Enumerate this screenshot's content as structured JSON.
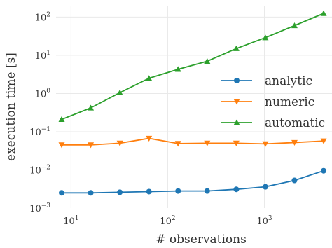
{
  "chart_data": {
    "type": "line",
    "title": "",
    "xlabel": "# observations",
    "ylabel": "execution time [s]",
    "xscale": "log",
    "yscale": "log",
    "xlim": [
      7,
      5000
    ],
    "ylim": [
      0.001,
      200
    ],
    "grid": true,
    "legend_position": "center-right",
    "x": [
      8,
      16,
      32,
      64,
      128,
      256,
      512,
      1024,
      2048,
      4096
    ],
    "x_ticks": [
      {
        "value": 10,
        "base": "10",
        "exp": "1"
      },
      {
        "value": 100,
        "base": "10",
        "exp": "2"
      },
      {
        "value": 1000,
        "base": "10",
        "exp": "3"
      }
    ],
    "y_ticks": [
      {
        "value": 0.001,
        "base": "10",
        "exp": "−3"
      },
      {
        "value": 0.01,
        "base": "10",
        "exp": "−2"
      },
      {
        "value": 0.1,
        "base": "10",
        "exp": "−1"
      },
      {
        "value": 1,
        "base": "10",
        "exp": "0"
      },
      {
        "value": 10,
        "base": "10",
        "exp": "1"
      },
      {
        "value": 100,
        "base": "10",
        "exp": "2"
      }
    ],
    "series": [
      {
        "name": "analytic",
        "color": "#1f77b4",
        "marker": "circle",
        "values": [
          0.0025,
          0.0025,
          0.0026,
          0.0027,
          0.0028,
          0.0028,
          0.0031,
          0.0036,
          0.0053,
          0.0095
        ]
      },
      {
        "name": "numeric",
        "color": "#ff7f0e",
        "marker": "triangle-down",
        "values": [
          0.045,
          0.045,
          0.05,
          0.067,
          0.049,
          0.05,
          0.05,
          0.048,
          0.052,
          0.057
        ]
      },
      {
        "name": "automatic",
        "color": "#2ca02c",
        "marker": "triangle-up",
        "values": [
          0.21,
          0.42,
          1.05,
          2.5,
          4.3,
          7.0,
          15,
          29,
          60,
          125
        ]
      }
    ]
  }
}
